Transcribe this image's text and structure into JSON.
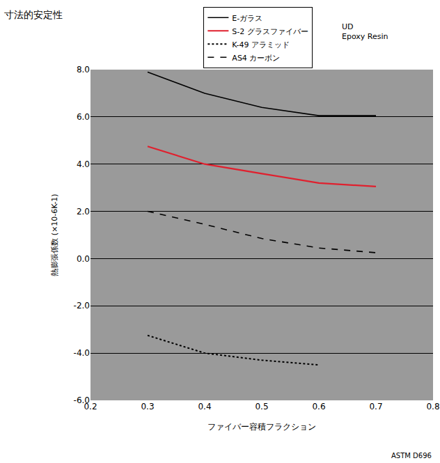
{
  "chart_data": {
    "type": "line",
    "title": "寸法的安定性",
    "x_label": "ファイバー容積フラクション",
    "y_label": "熱膨張係数 (×10-6K-1)",
    "annotations": [
      "UD Epoxy Resin",
      "ASTM D696"
    ],
    "x": [
      0.3,
      0.4,
      0.5,
      0.6,
      0.7
    ],
    "series": [
      {
        "name": "E-ガラス",
        "color": "#000000",
        "line_style": "solid",
        "values": [
          7.9,
          7.0,
          6.4,
          6.05,
          6.05
        ]
      },
      {
        "name": "S-2 グラスファイバー",
        "color": "#e0202e",
        "line_style": "solid",
        "values": [
          4.75,
          4.0,
          3.6,
          3.2,
          3.05
        ]
      },
      {
        "name": "K-49 アラミッド",
        "color": "#000000",
        "line_style": "dot",
        "values": [
          -3.25,
          -4.0,
          -4.3,
          -4.5,
          null
        ]
      },
      {
        "name": "AS4 カーボン",
        "color": "#000000",
        "line_style": "dash",
        "values": [
          2.0,
          1.45,
          0.85,
          0.45,
          0.25
        ]
      }
    ],
    "xlim": [
      0.2,
      0.8
    ],
    "xticks": [
      0.2,
      0.3,
      0.4,
      0.5,
      0.6,
      0.7,
      0.8
    ],
    "ylim": [
      -6,
      8
    ],
    "yticks": [
      {
        "value": 8,
        "label": "8.0"
      },
      {
        "value": 6,
        "label": "6.0"
      },
      {
        "value": 4,
        "label": "4.0"
      },
      {
        "value": 2,
        "label": "2.0"
      },
      {
        "value": 0,
        "label": "0.0"
      },
      {
        "value": -2,
        "label": "-2.0"
      },
      {
        "value": -4,
        "label": "-4.0"
      },
      {
        "value": -6,
        "label": "-6.0"
      }
    ],
    "grid": true,
    "legend": "top"
  }
}
